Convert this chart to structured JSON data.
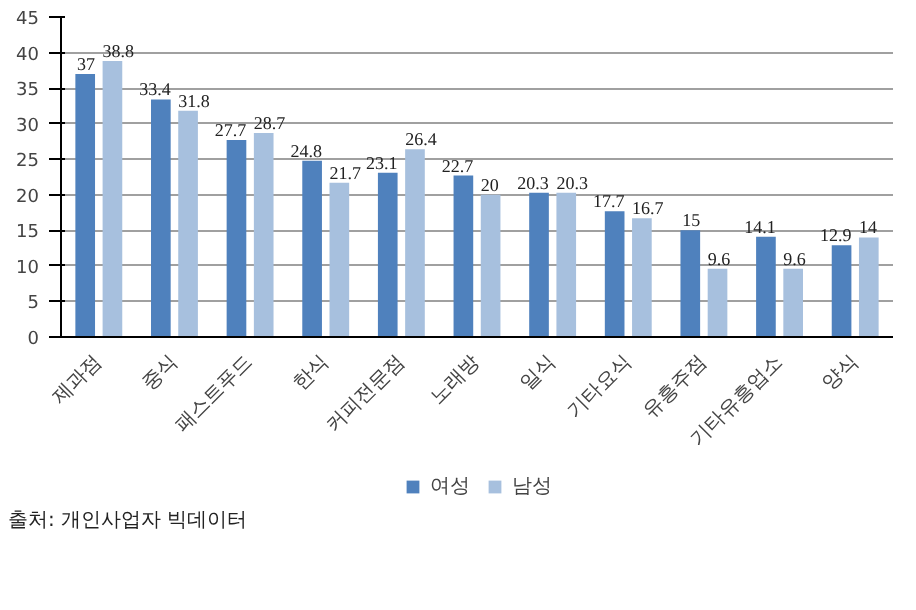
{
  "chart_data": {
    "type": "bar",
    "categories": [
      "제과점",
      "중식",
      "패스트푸드",
      "한식",
      "커피전문점",
      "노래방",
      "일식",
      "기타요식",
      "유흥주점",
      "기타유흥업소",
      "양식"
    ],
    "series": [
      {
        "name": "여성",
        "color": "#4f81bd",
        "values": [
          37,
          33.4,
          27.7,
          24.8,
          23.1,
          22.7,
          20.3,
          17.7,
          15,
          14.1,
          12.9
        ]
      },
      {
        "name": "남성",
        "color": "#a7c0de",
        "values": [
          38.8,
          31.8,
          28.7,
          21.7,
          26.4,
          20,
          20.3,
          16.7,
          9.6,
          9.6,
          14
        ]
      }
    ],
    "ylim": [
      0,
      45
    ],
    "yticks": [
      0,
      5,
      10,
      15,
      20,
      25,
      30,
      35,
      40,
      45
    ],
    "grid": "y",
    "legend": "bottom",
    "data_labels": true,
    "annotations": [
      "출처: 개인사업자 빅데이터"
    ]
  }
}
